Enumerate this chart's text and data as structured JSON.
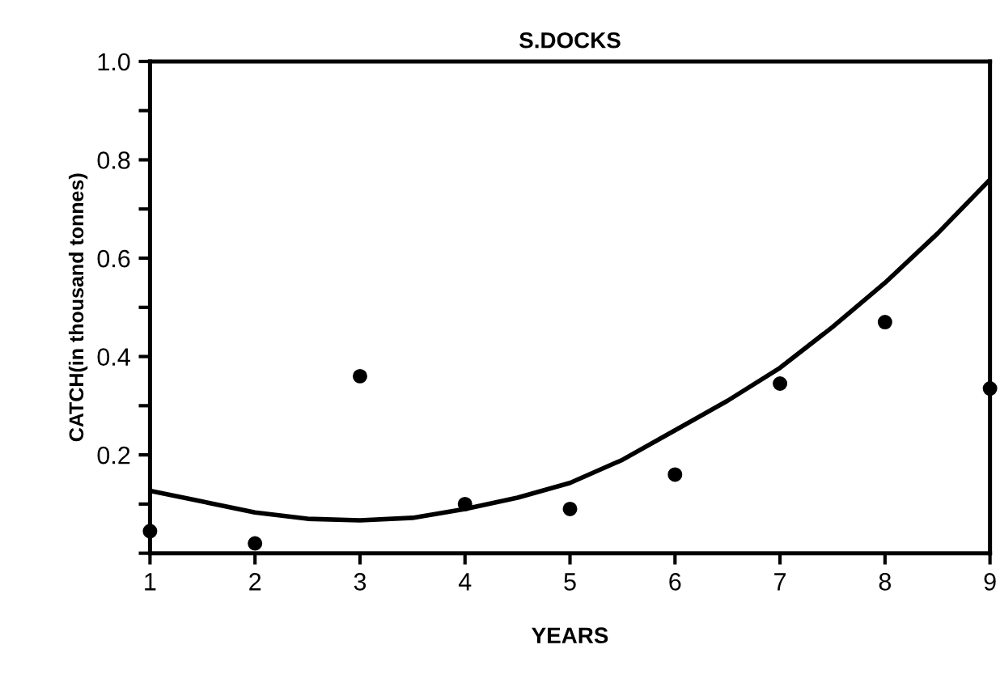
{
  "chart_data": {
    "type": "scatter",
    "title": "S.DOCKS",
    "xlabel": "YEARS",
    "ylabel": "CATCH(in thousand tonnes)",
    "x": [
      1,
      2,
      3,
      4,
      5,
      6,
      7,
      8,
      9
    ],
    "series": [
      {
        "color": "#000000",
        "marker": "circle",
        "values": [
          0.045,
          0.02,
          0.36,
          0.1,
          0.09,
          0.16,
          0.345,
          0.47,
          0.335
        ]
      },
      {
        "type": "line",
        "color": "#000000",
        "marker": "none",
        "line_style": "solid",
        "x": [
          1,
          1.5,
          2,
          2.5,
          3,
          3.5,
          4,
          4.5,
          5,
          5.5,
          6,
          6.5,
          7,
          7.5,
          8,
          8.5,
          9
        ],
        "values": [
          0.127,
          0.105,
          0.083,
          0.07,
          0.067,
          0.072,
          0.09,
          0.113,
          0.143,
          0.19,
          0.25,
          0.31,
          0.377,
          0.46,
          0.55,
          0.65,
          0.76
        ]
      }
    ],
    "xlim": [
      1,
      9
    ],
    "ylim": [
      0,
      1
    ],
    "xticks": [
      1,
      2,
      3,
      4,
      5,
      6,
      7,
      8,
      9
    ],
    "yticks": [
      {
        "value": 0,
        "label": null
      },
      {
        "value": 0.1,
        "label": null
      },
      0.2,
      {
        "value": 0.3,
        "label": null
      },
      0.4,
      {
        "value": 0.5,
        "label": null
      },
      0.6,
      {
        "value": 0.7,
        "label": null
      },
      0.8,
      {
        "value": 0.9,
        "label": null
      },
      {
        "value": 1.0,
        "label": "1.0"
      }
    ],
    "grid": false,
    "legend": false
  }
}
